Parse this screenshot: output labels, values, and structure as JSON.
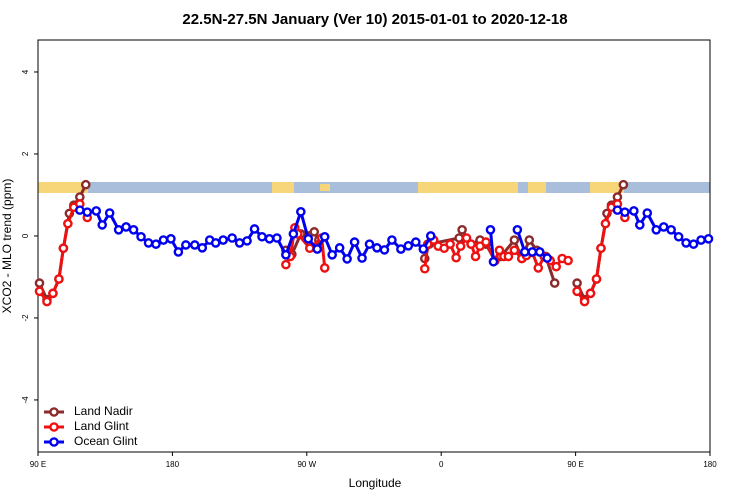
{
  "chart_data": {
    "type": "line",
    "title": "22.5N-27.5N January (Ver 10)   2015-01-01 to 2020-12-18",
    "x_label": "Longitude",
    "y_label": "XCO2 - MLO trend (ppm)",
    "xlim": [
      90,
      540
    ],
    "ylim": [
      -5.27,
      4.78
    ],
    "xticks": [
      {
        "value": 90,
        "label": "90 E"
      },
      {
        "value": 180,
        "label": "180"
      },
      {
        "value": 270,
        "label": "90 W"
      },
      {
        "value": 360,
        "label": "0"
      },
      {
        "value": 450,
        "label": "90 E"
      },
      {
        "value": 540,
        "label": "180"
      }
    ],
    "yticks": [
      -4,
      -2,
      0,
      2,
      4
    ],
    "legend": "bottom-left",
    "series": [
      {
        "name": "Land Nadir",
        "color": "#8b2a2a",
        "x": [
          91,
          96,
          100,
          104,
          107,
          111,
          114,
          118,
          122,
          null,
          256,
          260,
          266,
          275,
          278,
          null,
          349,
          352,
          372,
          374,
          380,
          386,
          390,
          396,
          400,
          409,
          414,
          419,
          424,
          430,
          436,
          null,
          451,
          456,
          460,
          464,
          467,
          471,
          474,
          478,
          482
        ],
        "values": [
          -1.15,
          -1.55,
          -1.4,
          -1.05,
          -0.3,
          0.55,
          0.75,
          0.95,
          1.25,
          null,
          -0.35,
          -0.45,
          0.05,
          0.1,
          -0.1,
          null,
          -0.55,
          -0.2,
          -0.05,
          0.15,
          -0.2,
          -0.1,
          -0.2,
          -0.6,
          -0.5,
          -0.1,
          -0.55,
          -0.1,
          -0.35,
          -0.5,
          -1.15,
          null,
          -1.15,
          -1.55,
          -1.4,
          -1.05,
          -0.3,
          0.55,
          0.75,
          0.95,
          1.25
        ]
      },
      {
        "name": "Land Glint",
        "color": "#ee1111",
        "x": [
          91,
          96,
          100,
          104,
          107,
          110,
          114,
          118,
          123,
          null,
          256,
          259,
          262,
          264,
          272,
          280,
          282,
          null,
          349,
          351,
          355,
          358,
          362,
          366,
          370,
          373,
          377,
          380,
          383,
          386,
          390,
          396,
          399,
          402,
          405,
          409,
          414,
          417,
          421,
          425,
          429,
          433,
          437,
          441,
          445,
          null,
          451,
          456,
          460,
          464,
          467,
          470,
          474,
          478,
          483
        ],
        "values": [
          -1.35,
          -1.6,
          -1.4,
          -1.05,
          -0.3,
          0.3,
          0.7,
          0.78,
          0.45,
          null,
          -0.7,
          -0.5,
          0.2,
          0.05,
          -0.3,
          -0.05,
          -0.78,
          null,
          -0.8,
          -0.2,
          -0.1,
          -0.25,
          -0.3,
          -0.2,
          -0.53,
          -0.25,
          -0.05,
          -0.2,
          -0.5,
          -0.25,
          -0.15,
          -0.6,
          -0.35,
          -0.5,
          -0.5,
          -0.35,
          -0.55,
          -0.48,
          -0.4,
          -0.78,
          -0.5,
          -0.6,
          -0.75,
          -0.55,
          -0.6,
          null,
          -1.35,
          -1.6,
          -1.4,
          -1.05,
          -0.3,
          0.3,
          0.7,
          0.78,
          0.45
        ]
      },
      {
        "name": "Ocean Glint",
        "color": "#0000ee",
        "x": [
          118,
          123,
          129,
          133,
          138,
          144,
          149,
          154,
          159,
          164,
          169,
          174,
          179,
          184,
          189,
          195,
          200,
          205,
          209,
          214,
          220,
          225,
          230,
          235,
          240,
          245,
          250,
          256,
          261,
          266,
          271,
          277,
          282,
          287,
          292,
          297,
          302,
          307,
          312,
          317,
          322,
          327,
          333,
          338,
          343,
          348,
          353,
          null,
          393,
          395,
          null,
          411,
          416,
          421,
          426,
          431,
          null,
          478,
          483,
          489,
          493,
          498,
          504,
          509,
          514,
          519,
          524,
          529,
          534,
          539
        ],
        "values": [
          0.63,
          0.58,
          0.61,
          0.27,
          0.56,
          0.15,
          0.22,
          0.15,
          -0.02,
          -0.17,
          -0.2,
          -0.1,
          -0.07,
          -0.39,
          -0.22,
          -0.22,
          -0.29,
          -0.1,
          -0.17,
          -0.1,
          -0.05,
          -0.17,
          -0.12,
          0.17,
          -0.02,
          -0.07,
          -0.05,
          -0.46,
          0.05,
          0.59,
          -0.07,
          -0.32,
          -0.02,
          -0.46,
          -0.29,
          -0.56,
          -0.15,
          -0.54,
          -0.2,
          -0.29,
          -0.34,
          -0.1,
          -0.32,
          -0.24,
          -0.15,
          -0.32,
          0.0,
          null,
          0.15,
          -0.63,
          null,
          0.15,
          -0.39,
          -0.39,
          -0.39,
          -0.54,
          null,
          0.63,
          0.58,
          0.61,
          0.27,
          0.56,
          0.15,
          0.22,
          0.15,
          -0.02,
          -0.17,
          -0.2,
          -0.1,
          -0.07
        ]
      }
    ]
  }
}
